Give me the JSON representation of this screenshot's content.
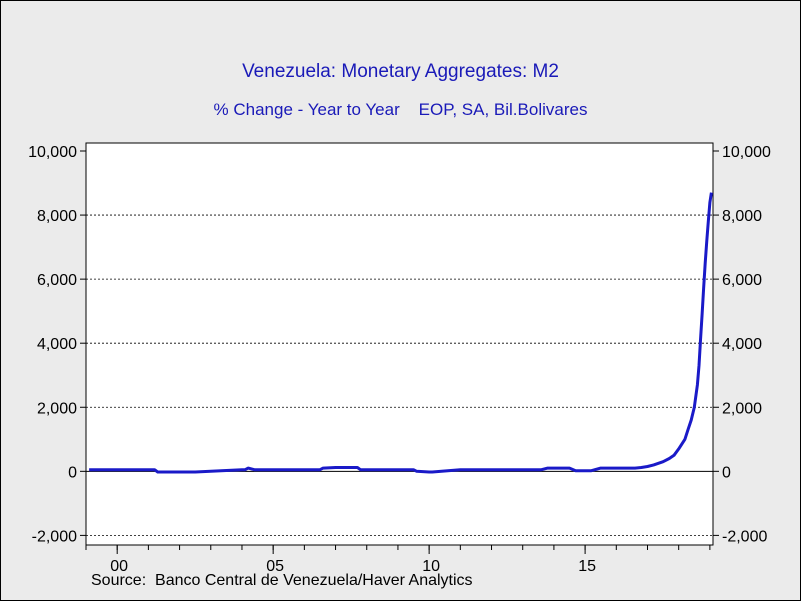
{
  "chart_data": {
    "type": "line",
    "title": "Venezuela: Monetary Aggregates: M2",
    "subtitle": "% Change - Year to Year    EOP, SA, Bil.Bolivares",
    "source": "Source:  Banco Central de Venezuela/Haver Analytics",
    "xlabel": "",
    "ylabel": "",
    "y_ticks": [
      -2000,
      0,
      2000,
      4000,
      6000,
      8000,
      10000
    ],
    "y_tick_labels": [
      "-2,000",
      "0",
      "2,000",
      "4,000",
      "6,000",
      "8,000",
      "10,000"
    ],
    "ylim": [
      -2300,
      10250
    ],
    "xlim": [
      1999.0,
      2019.1
    ],
    "x_ticks": [
      2000,
      2005,
      2010,
      2015
    ],
    "x_tick_labels": [
      "00",
      "05",
      "10",
      "15"
    ],
    "grid": "dotted horizontal at 2,000 / 4,000 / 6,000 / 8,000",
    "zero_line": true,
    "right_axis_mirror": true,
    "series": [
      {
        "color": "#1a1ac8",
        "x": [
          1999.1,
          2000.5,
          2001.2,
          2001.3,
          2002.5,
          2003.0,
          2004.0,
          2004.1,
          2004.2,
          2004.4,
          2005.0,
          2006.0,
          2006.5,
          2006.6,
          2007.0,
          2007.7,
          2007.8,
          2008.5,
          2009.0,
          2009.5,
          2009.6,
          2010.0,
          2010.1,
          2010.4,
          2011.0,
          2012.0,
          2012.5,
          2013.0,
          2013.6,
          2013.8,
          2014.5,
          2014.7,
          2015.2,
          2015.5,
          2016.2,
          2016.6,
          2016.8,
          2017.0,
          2017.2,
          2017.5,
          2017.7,
          2017.85,
          2018.0,
          2018.2,
          2018.3,
          2018.4,
          2018.5,
          2018.6,
          2018.65,
          2018.7,
          2018.75,
          2018.8,
          2018.85,
          2018.9,
          2018.95,
          2019.0,
          2019.05
        ],
        "y": [
          50,
          50,
          50,
          -20,
          -20,
          0,
          50,
          50,
          100,
          50,
          50,
          50,
          50,
          100,
          120,
          120,
          50,
          50,
          50,
          50,
          0,
          -20,
          -20,
          0,
          50,
          50,
          50,
          50,
          50,
          100,
          100,
          20,
          20,
          100,
          100,
          100,
          120,
          150,
          200,
          300,
          400,
          500,
          700,
          1000,
          1300,
          1600,
          2000,
          2700,
          3300,
          4100,
          4900,
          5700,
          6500,
          7200,
          7800,
          8400,
          8700
        ]
      }
    ]
  }
}
